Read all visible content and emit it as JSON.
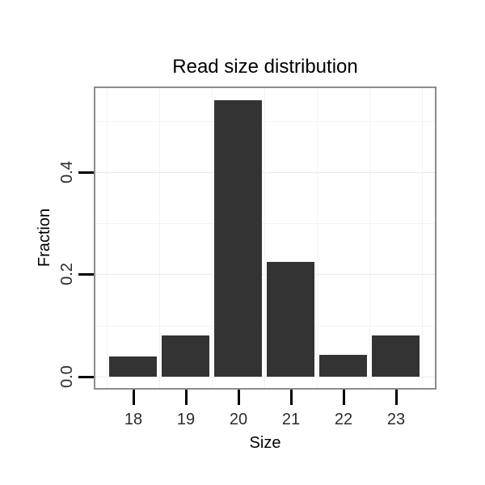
{
  "chart_data": {
    "type": "bar",
    "title": "Read size distribution",
    "xlabel": "Size",
    "ylabel": "Fraction",
    "categories": [
      "18",
      "19",
      "20",
      "21",
      "22",
      "23"
    ],
    "values": [
      0.04,
      0.08,
      0.54,
      0.224,
      0.042,
      0.08
    ],
    "y_major_ticks": [
      0.0,
      0.2,
      0.4
    ],
    "y_major_tick_labels": [
      "0.0",
      "0.2",
      "0.4"
    ],
    "y_minor_ticks": [
      0.1,
      0.3,
      0.5
    ],
    "ylim": [
      0,
      0.565
    ],
    "grid": "horizontal major+minor, vertical minor between categories",
    "legend": "none",
    "colors": {
      "bar": "#333333",
      "panel_border": "#8c8c8c",
      "grid_major": "#eaeaea",
      "grid_minor": "#f3f3f3",
      "tick": "#000000",
      "tick_label": "#2b2b2b",
      "text": "#000000",
      "background": "#ffffff"
    }
  }
}
